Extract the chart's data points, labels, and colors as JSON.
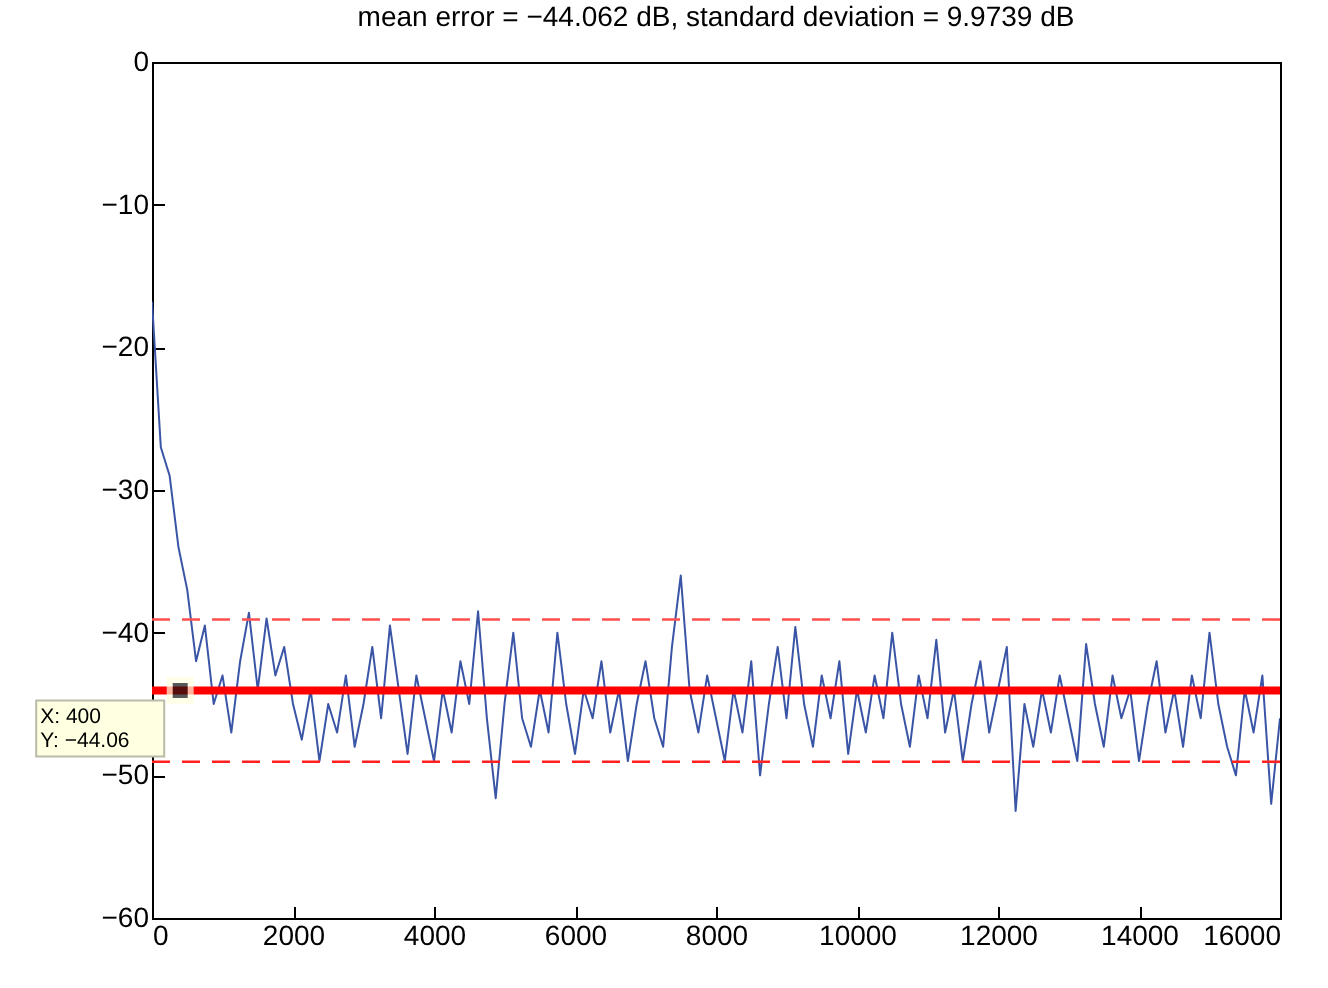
{
  "chart_data": {
    "type": "line",
    "title": "mean error = −44.062 dB, standard deviation = 9.9739 dB",
    "xlim": [
      0,
      16000
    ],
    "xticks": [
      0,
      2000,
      4000,
      6000,
      8000,
      10000,
      12000,
      14000,
      16000
    ],
    "ylim": [
      -60,
      0
    ],
    "yticks": [
      -60,
      -50,
      -40,
      -30,
      -20,
      -10,
      0
    ],
    "grid": false,
    "marker": "none",
    "line_style": "solid",
    "series": [
      {
        "color": "#3a55a6",
        "x": [
          0,
          125,
          250,
          375,
          500,
          625,
          750,
          875,
          1000,
          1125,
          1250,
          1375,
          1500,
          1625,
          1750,
          1875,
          2000,
          2125,
          2250,
          2375,
          2500,
          2625,
          2750,
          2875,
          3000,
          3125,
          3250,
          3375,
          3500,
          3625,
          3750,
          3875,
          4000,
          4125,
          4250,
          4375,
          4500,
          4625,
          4750,
          4875,
          5000,
          5125,
          5250,
          5375,
          5500,
          5625,
          5750,
          5875,
          6000,
          6125,
          6250,
          6375,
          6500,
          6625,
          6750,
          6875,
          7000,
          7125,
          7250,
          7375,
          7500,
          7625,
          7750,
          7875,
          8000,
          8125,
          8250,
          8375,
          8500,
          8625,
          8750,
          8875,
          9000,
          9125,
          9250,
          9375,
          9500,
          9625,
          9750,
          9875,
          10000,
          10125,
          10250,
          10375,
          10500,
          10625,
          10750,
          10875,
          11000,
          11125,
          11250,
          11375,
          11500,
          11625,
          11750,
          11875,
          12000,
          12125,
          12250,
          12375,
          12500,
          12625,
          12750,
          12875,
          13000,
          13125,
          13250,
          13375,
          13500,
          13625,
          13750,
          13875,
          14000,
          14125,
          14250,
          14375,
          14500,
          14625,
          14750,
          14875,
          15000,
          15125,
          15250,
          15375,
          15500,
          15625,
          15750,
          15875,
          16000
        ],
        "values": [
          -16.8,
          -27,
          -29,
          -34,
          -37,
          -42,
          -39.5,
          -45,
          -43,
          -47,
          -42,
          -38.6,
          -44,
          -39,
          -43,
          -41,
          -45,
          -47.5,
          -44,
          -49,
          -45,
          -47,
          -43,
          -48,
          -45,
          -41,
          -46,
          -39.5,
          -44,
          -48.5,
          -43,
          -46,
          -49,
          -44,
          -47,
          -42,
          -45,
          -38.5,
          -46,
          -51.6,
          -45,
          -40,
          -46,
          -48,
          -44,
          -47,
          -40,
          -45,
          -48.5,
          -44,
          -46,
          -42,
          -47,
          -44,
          -49,
          -45,
          -42,
          -46,
          -48,
          -41,
          -36,
          -44,
          -47,
          -43,
          -46,
          -49,
          -44,
          -47,
          -42,
          -50,
          -45,
          -41,
          -46,
          -39.6,
          -45,
          -48,
          -43,
          -46,
          -42,
          -48.5,
          -44,
          -47,
          -43,
          -46,
          -40,
          -45,
          -48,
          -43,
          -46,
          -40.5,
          -47,
          -44,
          -49,
          -45,
          -42,
          -47,
          -44,
          -41,
          -52.5,
          -45,
          -48,
          -44,
          -47,
          -43,
          -46,
          -49,
          -40.8,
          -45,
          -48,
          -43,
          -46,
          -44,
          -49,
          -45,
          -42,
          -47,
          -44,
          -48,
          -43,
          -46,
          -40,
          -45,
          -48,
          -50,
          -44,
          -47,
          -43,
          -52,
          -46
        ]
      }
    ],
    "ref_lines": [
      {
        "axis": "y",
        "value": -44.062,
        "color": "#ff0000",
        "line_style": "solid"
      },
      {
        "axis": "y",
        "value": -39.08,
        "color": "#ff5050",
        "line_style": "dashed"
      },
      {
        "axis": "y",
        "value": -49.05,
        "color": "#ff2020",
        "line_style": "dashed"
      }
    ],
    "annotations": [
      {
        "text": "X: 400\nY: −44.06",
        "x": 400,
        "y": -44.06
      }
    ]
  }
}
